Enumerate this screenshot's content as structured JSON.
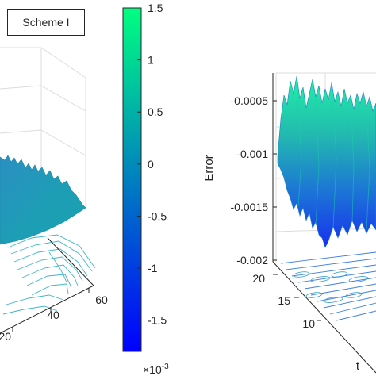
{
  "legend": {
    "label": "Scheme I"
  },
  "colors": {
    "low": "#1b1bf5",
    "mid": "#1f9bb8",
    "high": "#1ff7a0",
    "grid": "#dcdcdc",
    "axis": "#262626"
  },
  "chart_data": [
    {
      "type": "colorbar",
      "clim": [
        -1.8,
        1.5
      ],
      "ticks": [
        1.5,
        1,
        0.5,
        0,
        -0.5,
        -1,
        -1.5
      ],
      "tick_labels": [
        "1.5",
        "1",
        "0.5",
        "0",
        "-0.5",
        "-1",
        "-1.5"
      ],
      "exponent_label": "×10",
      "exponent_power": "-3",
      "colormap": "winter"
    },
    {
      "type": "surface",
      "legend": "Scheme I",
      "x_ticks": [
        20,
        40,
        60
      ],
      "x_tick_labels": [
        "20",
        "40",
        "60"
      ],
      "grid": true
    },
    {
      "type": "surface",
      "zlabel": "Error",
      "ylabel": "t",
      "z_ticks": [
        -0.0005,
        -0.001,
        -0.0015,
        -0.002
      ],
      "z_tick_labels": [
        "-0.0005",
        "-0.001",
        "-0.0015",
        "-0.002"
      ],
      "y_ticks": [
        20,
        15,
        10
      ],
      "y_tick_labels": [
        "20",
        "15",
        "10"
      ],
      "grid": true
    }
  ]
}
